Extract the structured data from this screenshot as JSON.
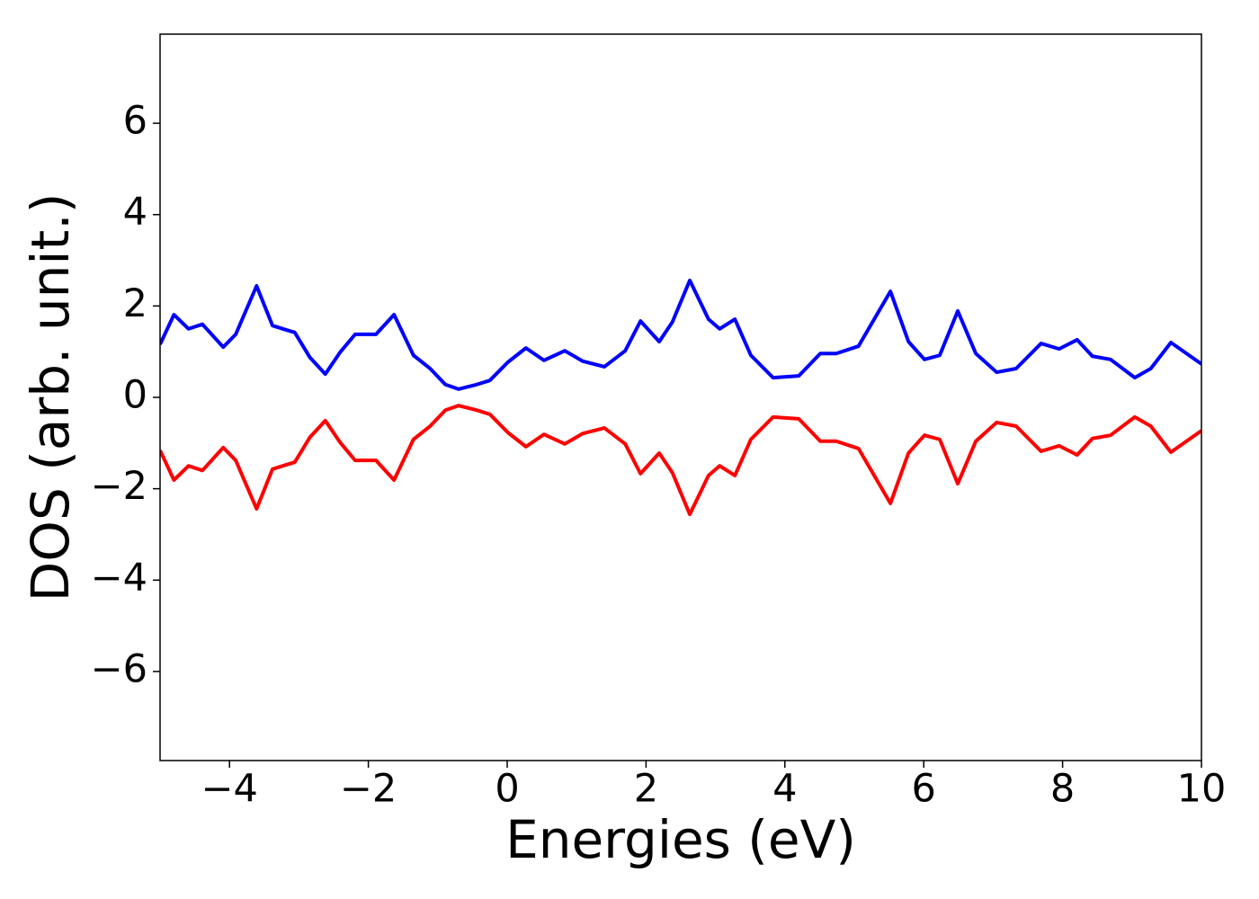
{
  "chart_data": {
    "type": "line",
    "x_label": "Energies (eV)",
    "y_label": "DOS (arb. unit.)",
    "x": [
      -5,
      -4.8,
      -4.59,
      -4.39,
      -4.09,
      -3.91,
      -3.61,
      -3.38,
      -3.19,
      -3.06,
      -2.84,
      -2.62,
      -2.41,
      -2.19,
      -1.89,
      -1.63,
      -1.35,
      -1.11,
      -0.89,
      -0.7,
      -0.44,
      -0.25,
      0.01,
      0.27,
      0.53,
      0.83,
      1.09,
      1.4,
      1.7,
      1.92,
      2.19,
      2.38,
      2.63,
      2.9,
      3.06,
      3.28,
      3.51,
      3.83,
      4.2,
      4.51,
      4.74,
      5.06,
      5.52,
      5.78,
      6.01,
      6.23,
      6.49,
      6.75,
      7.05,
      7.33,
      7.69,
      7.95,
      8.21,
      8.43,
      8.69,
      9.04,
      9.27,
      9.56,
      10
    ],
    "series": [
      {
        "color": "#0000ff",
        "values": [
          1.16,
          1.81,
          1.5,
          1.6,
          1.1,
          1.38,
          2.44,
          1.57,
          1.48,
          1.42,
          0.87,
          0.51,
          0.98,
          1.38,
          1.38,
          1.81,
          0.92,
          0.63,
          0.28,
          0.18,
          0.28,
          0.37,
          0.77,
          1.08,
          0.81,
          1.02,
          0.79,
          0.67,
          1.02,
          1.67,
          1.22,
          1.65,
          2.56,
          1.71,
          1.5,
          1.71,
          0.92,
          0.43,
          0.47,
          0.96,
          0.96,
          1.12,
          2.32,
          1.22,
          0.83,
          0.92,
          1.89,
          0.96,
          0.55,
          0.63,
          1.18,
          1.06,
          1.26,
          0.9,
          0.83,
          0.43,
          0.63,
          1.2,
          0.73
        ]
      },
      {
        "color": "#ff0000",
        "values": [
          -1.16,
          -1.81,
          -1.5,
          -1.6,
          -1.1,
          -1.38,
          -2.44,
          -1.57,
          -1.48,
          -1.42,
          -0.87,
          -0.51,
          -0.98,
          -1.38,
          -1.38,
          -1.81,
          -0.92,
          -0.63,
          -0.28,
          -0.18,
          -0.28,
          -0.37,
          -0.77,
          -1.08,
          -0.81,
          -1.02,
          -0.79,
          -0.67,
          -1.02,
          -1.67,
          -1.22,
          -1.65,
          -2.56,
          -1.71,
          -1.5,
          -1.71,
          -0.92,
          -0.43,
          -0.47,
          -0.96,
          -0.96,
          -1.12,
          -2.32,
          -1.22,
          -0.83,
          -0.92,
          -1.89,
          -0.96,
          -0.55,
          -0.63,
          -1.18,
          -1.06,
          -1.26,
          -0.9,
          -0.83,
          -0.43,
          -0.63,
          -1.2,
          -0.73
        ]
      }
    ],
    "xlim": [
      -5,
      10
    ],
    "ylim": [
      -7.95,
      7.95
    ],
    "xticks": [
      {
        "value": -4,
        "label": "−4"
      },
      {
        "value": -2,
        "label": "−2"
      },
      0,
      2,
      4,
      6,
      8,
      10
    ],
    "yticks": [
      {
        "value": -6,
        "label": "−6"
      },
      {
        "value": -4,
        "label": "−4"
      },
      {
        "value": -2,
        "label": "−2"
      },
      0,
      2,
      4,
      6
    ],
    "grid": false
  }
}
